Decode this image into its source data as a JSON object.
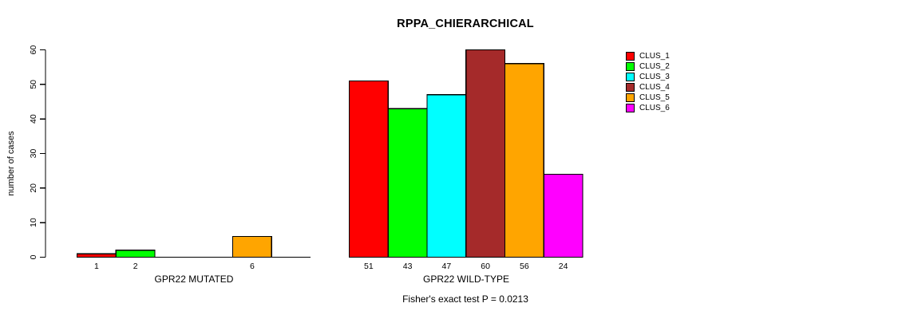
{
  "chart_data": {
    "type": "bar",
    "title": "RPPA_CHIERARCHICAL",
    "ylabel": "number of cases",
    "ylim": [
      0,
      60
    ],
    "yticks": [
      0,
      10,
      20,
      30,
      40,
      50,
      60
    ],
    "grid": false,
    "annotation": "Fisher's exact test P = 0.0213",
    "series_labels": [
      "CLUS_1",
      "CLUS_2",
      "CLUS_3",
      "CLUS_4",
      "CLUS_5",
      "CLUS_6"
    ],
    "colors": [
      "#FF0000",
      "#00FF00",
      "#00FFFF",
      "#A52A2A",
      "#FFA500",
      "#FF00FF"
    ],
    "groups": [
      {
        "label": "GPR22 MUTATED",
        "values": [
          1,
          2,
          0,
          0,
          6,
          0
        ]
      },
      {
        "label": "GPR22 WILD-TYPE",
        "values": [
          51,
          43,
          47,
          60,
          56,
          24
        ]
      }
    ],
    "value_labels_shown": "nonzero bars only",
    "legend": {
      "position": "right",
      "entries": [
        {
          "label": "CLUS_1",
          "color": "#FF0000"
        },
        {
          "label": "CLUS_2",
          "color": "#00FF00"
        },
        {
          "label": "CLUS_3",
          "color": "#00FFFF"
        },
        {
          "label": "CLUS_4",
          "color": "#A52A2A"
        },
        {
          "label": "CLUS_5",
          "color": "#FFA500"
        },
        {
          "label": "CLUS_6",
          "color": "#FF00FF"
        }
      ]
    }
  }
}
